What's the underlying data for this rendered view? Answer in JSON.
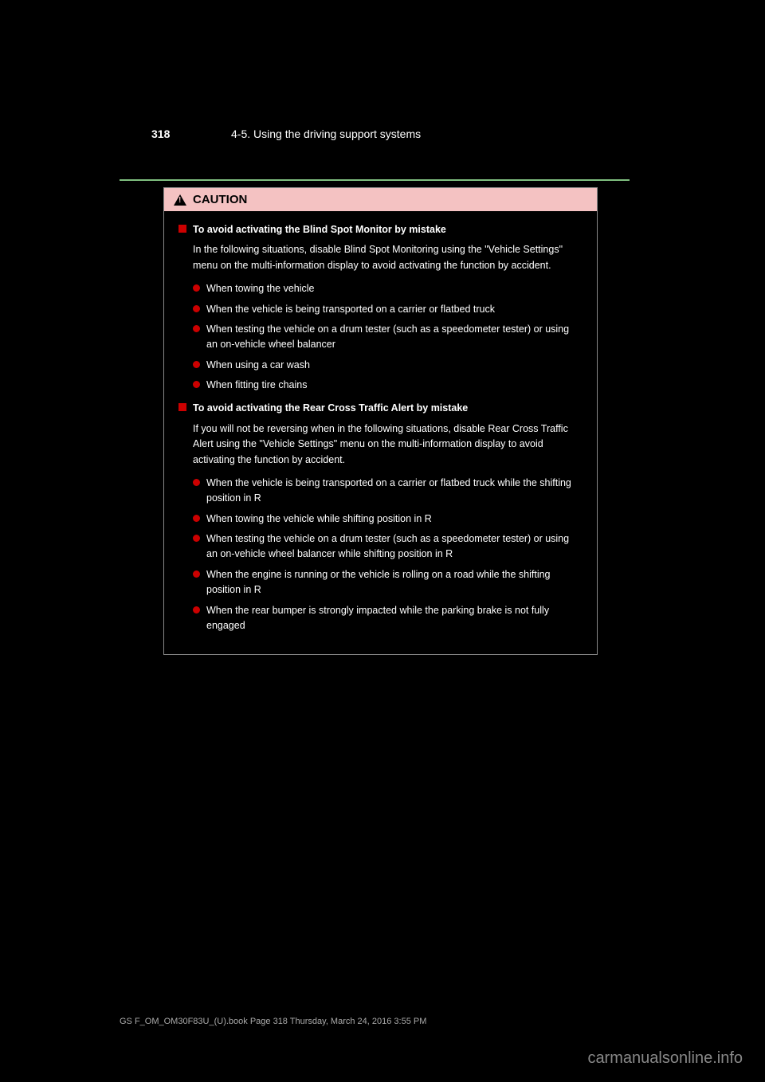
{
  "page_number": "318",
  "section_header": "4-5. Using the driving support systems",
  "caution_label": "CAUTION",
  "sections": [
    {
      "title": "To avoid activating the Blind Spot Monitor by mistake",
      "intro": "In the following situations, disable Blind Spot Monitoring using the \"Vehicle Settings\" menu on the multi-information display to avoid activating the function by accident.",
      "bullets": [
        "When towing the vehicle",
        "When the vehicle is being transported on a carrier or flatbed truck",
        "When testing the vehicle on a drum tester (such as a speedometer tester) or using an on-vehicle wheel balancer",
        "When using a car wash",
        "When fitting tire chains"
      ]
    },
    {
      "title": "To avoid activating the Rear Cross Traffic Alert by mistake",
      "intro": "If you will not be reversing when in the following situations, disable Rear Cross Traffic Alert using the \"Vehicle Settings\" menu on the multi-information display to avoid activating the function by accident.",
      "bullets": [
        "When the vehicle is being transported on a carrier or flatbed truck while the shifting position in R",
        "When towing the vehicle while shifting position in R",
        "When testing the vehicle on a drum tester (such as a speedometer tester) or using an on-vehicle wheel balancer while shifting position in R",
        "When the engine is running or the vehicle is rolling on a road while the shifting position in R",
        "When the rear bumper is strongly impacted while the parking brake is not fully engaged"
      ]
    }
  ],
  "date_footer": "GS F_OM_OM30F83U_(U).book  Page 318  Thursday, March 24, 2016  3:55 PM",
  "watermark": "carmanualsonline.info",
  "colors": {
    "background": "#000000",
    "text": "#ffffff",
    "separator": "#7fbf7f",
    "caution_header_bg": "#f4c2c2",
    "red_accent": "#cc0000",
    "watermark_color": "#888888"
  }
}
